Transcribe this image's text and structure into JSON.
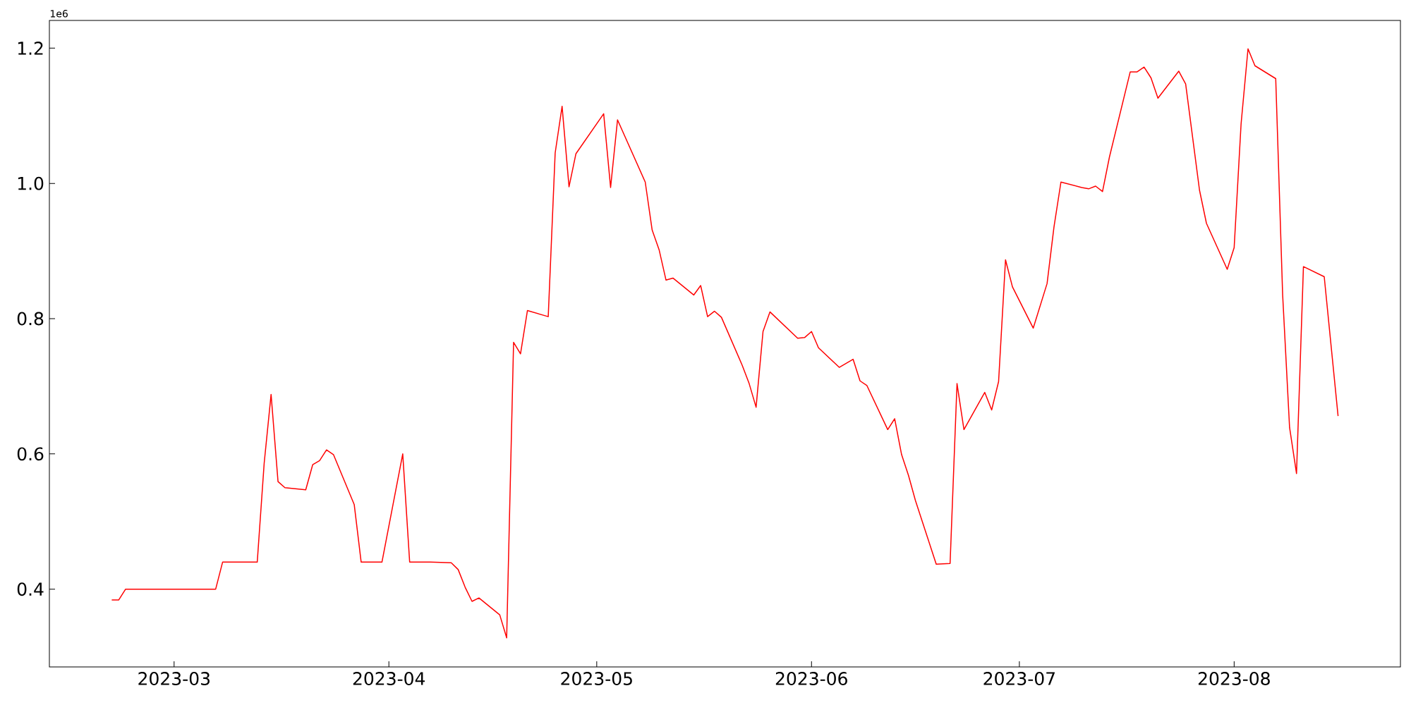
{
  "chart_data": {
    "type": "line",
    "annotations": [
      "1e6"
    ],
    "x": [
      "2023-02-20",
      "2023-02-21",
      "2023-02-22",
      "2023-03-07",
      "2023-03-08",
      "2023-03-13",
      "2023-03-14",
      "2023-03-15",
      "2023-03-16",
      "2023-03-17",
      "2023-03-20",
      "2023-03-21",
      "2023-03-22",
      "2023-03-23",
      "2023-03-24",
      "2023-03-27",
      "2023-03-28",
      "2023-03-30",
      "2023-03-31",
      "2023-04-03",
      "2023-04-04",
      "2023-04-07",
      "2023-04-10",
      "2023-04-11",
      "2023-04-12",
      "2023-04-13",
      "2023-04-14",
      "2023-04-17",
      "2023-04-18",
      "2023-04-19",
      "2023-04-20",
      "2023-04-21",
      "2023-04-24",
      "2023-04-25",
      "2023-04-26",
      "2023-04-27",
      "2023-04-28",
      "2023-05-02",
      "2023-05-03",
      "2023-05-04",
      "2023-05-08",
      "2023-05-09",
      "2023-05-10",
      "2023-05-11",
      "2023-05-12",
      "2023-05-15",
      "2023-05-16",
      "2023-05-17",
      "2023-05-18",
      "2023-05-19",
      "2023-05-22",
      "2023-05-23",
      "2023-05-24",
      "2023-05-25",
      "2023-05-26",
      "2023-05-30",
      "2023-05-31",
      "2023-06-01",
      "2023-06-02",
      "2023-06-05",
      "2023-06-07",
      "2023-06-08",
      "2023-06-09",
      "2023-06-12",
      "2023-06-13",
      "2023-06-14",
      "2023-06-15",
      "2023-06-16",
      "2023-06-19",
      "2023-06-21",
      "2023-06-22",
      "2023-06-23",
      "2023-06-26",
      "2023-06-27",
      "2023-06-28",
      "2023-06-29",
      "2023-06-30",
      "2023-07-03",
      "2023-07-05",
      "2023-07-06",
      "2023-07-07",
      "2023-07-10",
      "2023-07-11",
      "2023-07-12",
      "2023-07-13",
      "2023-07-14",
      "2023-07-17",
      "2023-07-18",
      "2023-07-19",
      "2023-07-20",
      "2023-07-21",
      "2023-07-24",
      "2023-07-25",
      "2023-07-27",
      "2023-07-28",
      "2023-07-31",
      "2023-08-01",
      "2023-08-02",
      "2023-08-03",
      "2023-08-04",
      "2023-08-07",
      "2023-08-08",
      "2023-08-09",
      "2023-08-10",
      "2023-08-11",
      "2023-08-14",
      "2023-08-16"
    ],
    "series": [
      {
        "color": "#ff0000",
        "values": [
          0.384,
          0.384,
          0.4,
          0.4,
          0.44,
          0.44,
          0.586,
          0.688,
          0.559,
          0.55,
          0.547,
          0.584,
          0.59,
          0.606,
          0.599,
          0.525,
          0.44,
          0.44,
          0.44,
          0.6,
          0.44,
          0.44,
          0.439,
          0.429,
          0.403,
          0.382,
          0.387,
          0.362,
          0.328,
          0.765,
          0.748,
          0.812,
          0.803,
          1.045,
          1.114,
          0.995,
          1.044,
          1.103,
          0.994,
          1.094,
          1.002,
          0.931,
          0.902,
          0.857,
          0.86,
          0.835,
          0.849,
          0.803,
          0.811,
          0.802,
          0.731,
          0.704,
          0.669,
          0.781,
          0.81,
          0.771,
          0.772,
          0.781,
          0.757,
          0.728,
          0.74,
          0.708,
          0.701,
          0.636,
          0.652,
          0.599,
          0.568,
          0.531,
          0.437,
          0.438,
          0.704,
          0.636,
          0.691,
          0.665,
          0.707,
          0.887,
          0.847,
          0.786,
          0.852,
          0.936,
          1.002,
          0.994,
          0.992,
          0.996,
          0.988,
          1.039,
          1.165,
          1.165,
          1.172,
          1.156,
          1.126,
          1.166,
          1.147,
          0.99,
          0.941,
          0.873,
          0.905,
          1.088,
          1.199,
          1.174,
          1.155,
          0.835,
          0.639,
          0.571,
          0.877,
          0.862,
          0.656
        ]
      }
    ],
    "xlim": [
      "2023-02-11",
      "2023-08-25"
    ],
    "xticks": [
      {
        "value": "2023-03-01",
        "label": "2023-03"
      },
      {
        "value": "2023-04-01",
        "label": "2023-04"
      },
      {
        "value": "2023-05-01",
        "label": "2023-05"
      },
      {
        "value": "2023-06-01",
        "label": "2023-06"
      },
      {
        "value": "2023-07-01",
        "label": "2023-07"
      },
      {
        "value": "2023-08-01",
        "label": "2023-08"
      }
    ],
    "ylim": [
      0.285,
      1.241
    ],
    "yticks": [
      0.4,
      0.6,
      0.8,
      {
        "value": 1.0,
        "label": "1.0"
      },
      1.2
    ],
    "grid": false,
    "marker": "none",
    "line_style": "solid"
  }
}
